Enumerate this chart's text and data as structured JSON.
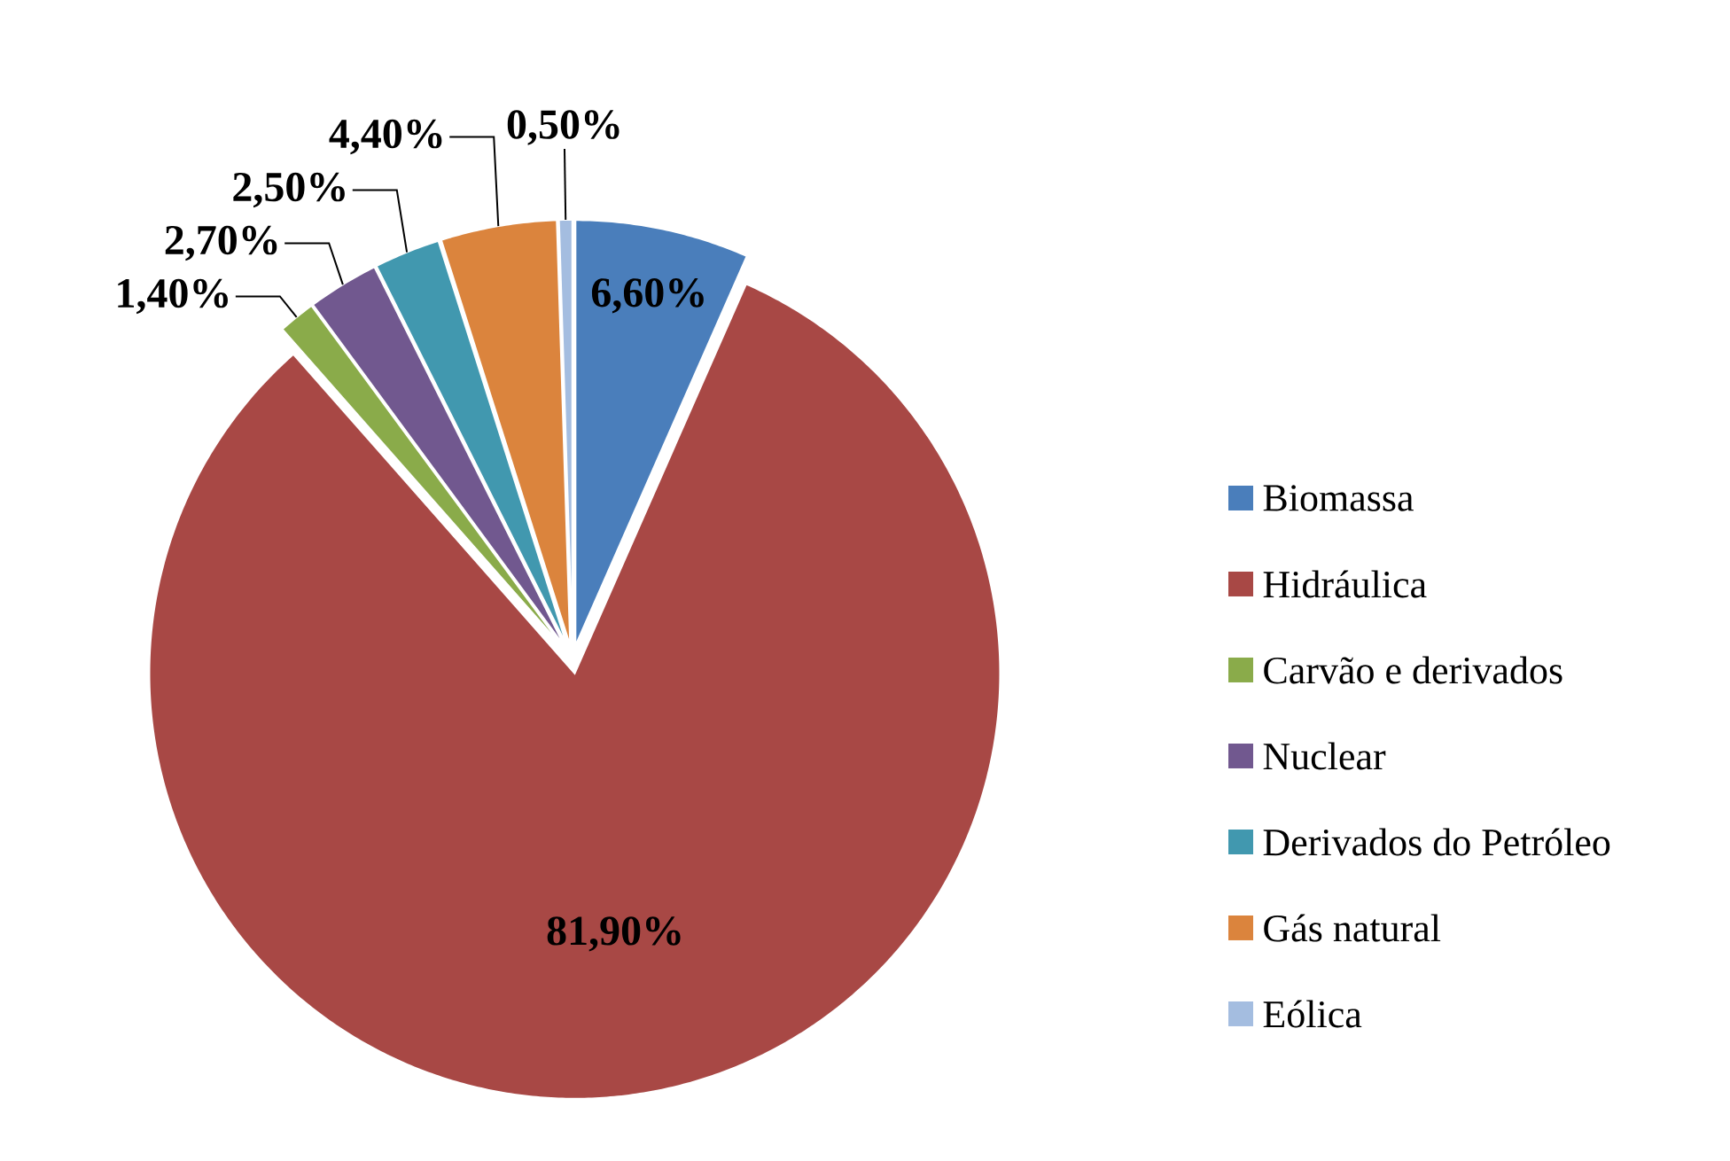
{
  "chart_data": {
    "type": "pie",
    "categories": [
      "Biomassa",
      "Hidráulica",
      "Carvão e derivados",
      "Nuclear",
      "Derivados do Petróleo",
      "Gás natural",
      "Eólica"
    ],
    "values": [
      6.6,
      81.9,
      1.4,
      2.7,
      2.5,
      4.4,
      0.5
    ],
    "colors": [
      "#4a7ebb",
      "#a84845",
      "#8aab4a",
      "#71588f",
      "#4198af",
      "#db843d",
      "#a4bde0"
    ],
    "value_labels": [
      "6,60%",
      "81,90%",
      "1,40%",
      "2,70%",
      "2,50%",
      "4,40%",
      "0,50%"
    ],
    "legend": "right"
  }
}
